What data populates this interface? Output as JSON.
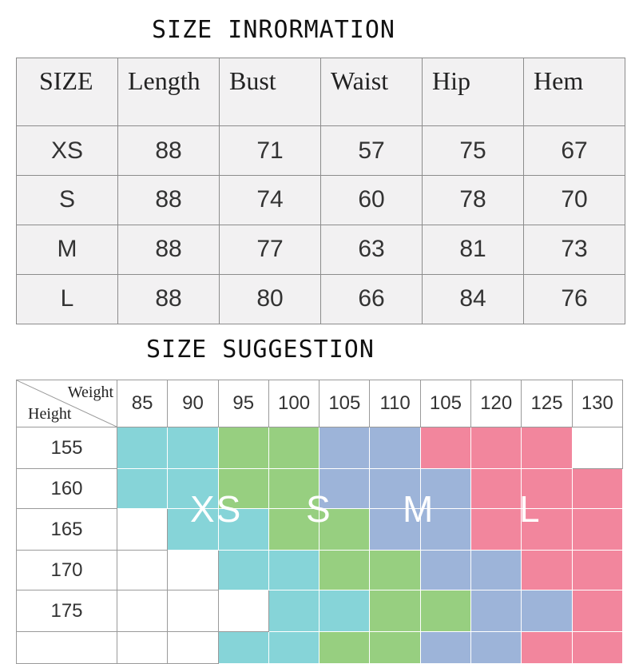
{
  "titles": {
    "info": "SIZE INRORMATION",
    "suggestion": "SIZE SUGGESTION"
  },
  "size_info": {
    "headers": [
      "SIZE",
      "Length",
      "Bust",
      "Waist",
      "Hip",
      "Hem"
    ],
    "rows": [
      [
        "XS",
        "88",
        "71",
        "57",
        "75",
        "67"
      ],
      [
        "S",
        "88",
        "74",
        "60",
        "78",
        "70"
      ],
      [
        "M",
        "88",
        "77",
        "63",
        "81",
        "73"
      ],
      [
        "L",
        "88",
        "80",
        "66",
        "84",
        "76"
      ]
    ]
  },
  "suggestion": {
    "weight_label": "Weight",
    "height_label": "Height",
    "weights": [
      "85",
      "90",
      "95",
      "100",
      "105",
      "110",
      "105",
      "120",
      "125",
      "130"
    ],
    "heights": [
      "155",
      "160",
      "165",
      "170",
      "175",
      ""
    ],
    "grid": [
      [
        "XS",
        "XS",
        "S",
        "S",
        "M",
        "M",
        "L",
        "L",
        "L",
        ""
      ],
      [
        "XS",
        "XS",
        "S",
        "S",
        "M",
        "M",
        "M",
        "L",
        "L",
        "L"
      ],
      [
        "",
        "XS",
        "XS",
        "S",
        "S",
        "M",
        "M",
        "L",
        "L",
        "L"
      ],
      [
        "",
        "",
        "XS",
        "XS",
        "S",
        "S",
        "M",
        "M",
        "L",
        "L"
      ],
      [
        "",
        "",
        "",
        "XS",
        "XS",
        "S",
        "S",
        "M",
        "M",
        "L"
      ],
      [
        "",
        "",
        "XS",
        "XS",
        "S",
        "S",
        "M",
        "M",
        "L",
        "L"
      ]
    ],
    "size_labels": [
      "XS",
      "S",
      "M",
      "L"
    ],
    "colors": {
      "XS": "#86d4d8",
      "S": "#97cf80",
      "M": "#9db4d9",
      "L": "#f2869d"
    }
  }
}
